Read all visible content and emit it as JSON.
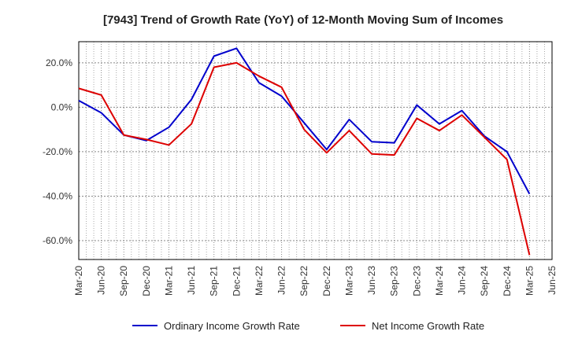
{
  "chart_data": {
    "type": "line",
    "title": "[7943]  Trend of Growth Rate (YoY) of 12-Month Moving Sum of Incomes",
    "xlabel": "",
    "ylabel": "",
    "categories": [
      "Mar-20",
      "Jun-20",
      "Sep-20",
      "Dec-20",
      "Mar-21",
      "Jun-21",
      "Sep-21",
      "Dec-21",
      "Mar-22",
      "Jun-22",
      "Sep-22",
      "Dec-22",
      "Mar-23",
      "Jun-23",
      "Sep-23",
      "Dec-23",
      "Mar-24",
      "Jun-24",
      "Sep-24",
      "Dec-24",
      "Mar-25",
      "Jun-25"
    ],
    "y_ticks": [
      20,
      0,
      -20,
      -40,
      -60
    ],
    "y_tick_labels": [
      "20.0%",
      "0.0%",
      "-20.0%",
      "-40.0%",
      "-60.0%"
    ],
    "ylim": [
      -68.5,
      29.5
    ],
    "grid": true,
    "legend_position": "bottom",
    "series": [
      {
        "name": "Ordinary Income Growth Rate",
        "color": "#0000cc",
        "values": [
          3.0,
          -2.5,
          -12.5,
          -15.0,
          -9.0,
          3.5,
          23.0,
          26.5,
          11.0,
          5.0,
          -7.0,
          -19.0,
          -5.5,
          -15.5,
          -16.0,
          1.0,
          -7.5,
          -1.5,
          -13.0,
          -20.0,
          -39.0,
          null
        ]
      },
      {
        "name": "Net Income Growth Rate",
        "color": "#dd0000",
        "values": [
          8.5,
          5.5,
          -12.5,
          -14.5,
          -17.0,
          -7.5,
          18.0,
          20.0,
          14.0,
          9.0,
          -10.0,
          -20.5,
          -10.5,
          -21.0,
          -21.5,
          -5.0,
          -10.5,
          -3.5,
          -13.5,
          -23.5,
          -66.5,
          null
        ]
      }
    ]
  }
}
